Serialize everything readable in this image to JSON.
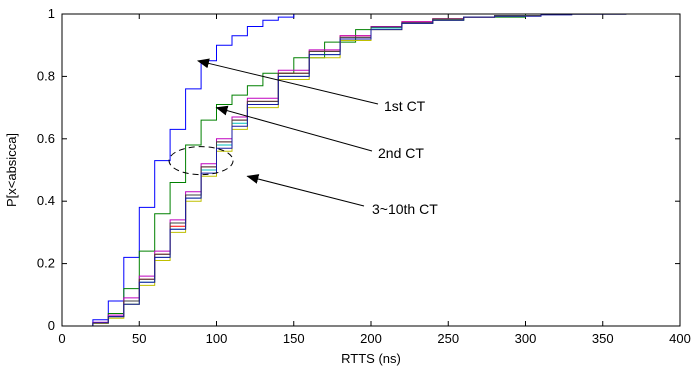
{
  "chart_data": {
    "type": "line",
    "title": "",
    "xlabel": "RTTS (ns)",
    "ylabel": "P[x<absicca]",
    "xlim": [
      0,
      400
    ],
    "ylim": [
      0,
      1
    ],
    "xticks": [
      0,
      50,
      100,
      150,
      200,
      250,
      300,
      350,
      400
    ],
    "yticks": [
      0,
      0.2,
      0.4,
      0.6,
      0.8,
      1
    ],
    "grid": false,
    "series": [
      {
        "color": "#0000ff",
        "x": [
          0,
          20,
          30,
          40,
          50,
          60,
          70,
          80,
          90,
          100,
          110,
          120,
          130,
          140,
          150,
          160
        ],
        "y": [
          0,
          0.02,
          0.08,
          0.22,
          0.38,
          0.53,
          0.63,
          0.76,
          0.85,
          0.9,
          0.93,
          0.96,
          0.98,
          0.99,
          1,
          1
        ]
      },
      {
        "color": "#008000",
        "x": [
          0,
          20,
          30,
          40,
          50,
          60,
          70,
          80,
          90,
          100,
          110,
          120,
          130,
          150,
          170,
          190,
          200,
          220,
          240,
          260,
          300,
          320
        ],
        "y": [
          0,
          0.01,
          0.04,
          0.12,
          0.24,
          0.36,
          0.46,
          0.58,
          0.66,
          0.71,
          0.74,
          0.77,
          0.81,
          0.86,
          0.91,
          0.95,
          0.96,
          0.97,
          0.98,
          0.99,
          1,
          1
        ]
      },
      {
        "color": "#ff0000",
        "x": [
          0,
          20,
          30,
          40,
          50,
          60,
          70,
          80,
          90,
          100,
          110,
          120,
          140,
          160,
          180,
          200,
          220,
          240,
          260,
          280,
          310,
          330
        ],
        "y": [
          0,
          0.01,
          0.03,
          0.08,
          0.15,
          0.23,
          0.32,
          0.42,
          0.51,
          0.59,
          0.66,
          0.72,
          0.81,
          0.88,
          0.93,
          0.96,
          0.975,
          0.985,
          0.99,
          0.995,
          1,
          1
        ]
      },
      {
        "color": "#00bfbf",
        "x": [
          0,
          20,
          30,
          40,
          50,
          60,
          70,
          80,
          90,
          100,
          110,
          120,
          140,
          160,
          180,
          200,
          220,
          240,
          260,
          280,
          310,
          330
        ],
        "y": [
          0,
          0.01,
          0.03,
          0.07,
          0.14,
          0.22,
          0.31,
          0.41,
          0.5,
          0.58,
          0.65,
          0.71,
          0.8,
          0.87,
          0.92,
          0.955,
          0.97,
          0.98,
          0.99,
          0.995,
          1,
          1
        ]
      },
      {
        "color": "#bf00bf",
        "x": [
          0,
          20,
          30,
          40,
          50,
          60,
          70,
          80,
          90,
          100,
          110,
          120,
          140,
          160,
          180,
          200,
          220,
          240,
          260,
          280,
          310,
          330
        ],
        "y": [
          0,
          0.012,
          0.035,
          0.09,
          0.16,
          0.24,
          0.34,
          0.43,
          0.52,
          0.6,
          0.67,
          0.73,
          0.82,
          0.885,
          0.93,
          0.96,
          0.975,
          0.985,
          0.99,
          0.995,
          1,
          1
        ]
      },
      {
        "color": "#bfbf00",
        "x": [
          0,
          20,
          30,
          40,
          50,
          60,
          70,
          80,
          90,
          100,
          110,
          120,
          140,
          160,
          180,
          200,
          220,
          240,
          260,
          280,
          310,
          330
        ],
        "y": [
          0,
          0.008,
          0.025,
          0.07,
          0.13,
          0.21,
          0.3,
          0.4,
          0.48,
          0.56,
          0.63,
          0.7,
          0.79,
          0.86,
          0.915,
          0.95,
          0.97,
          0.98,
          0.99,
          0.995,
          1,
          1
        ]
      },
      {
        "color": "#404040",
        "x": [
          0,
          20,
          30,
          40,
          50,
          60,
          70,
          80,
          90,
          100,
          110,
          120,
          140,
          160,
          180,
          200,
          220,
          240,
          260,
          280,
          310,
          330
        ],
        "y": [
          0,
          0.01,
          0.03,
          0.08,
          0.15,
          0.23,
          0.33,
          0.42,
          0.51,
          0.59,
          0.66,
          0.72,
          0.81,
          0.88,
          0.925,
          0.958,
          0.972,
          0.984,
          0.99,
          0.995,
          1,
          1
        ]
      },
      {
        "color": "#1a1aa0",
        "x": [
          0,
          20,
          30,
          40,
          50,
          60,
          70,
          80,
          90,
          100,
          110,
          120,
          140,
          160,
          180,
          200,
          220,
          240,
          260,
          280,
          310,
          330,
          365
        ],
        "y": [
          0,
          0.01,
          0.03,
          0.07,
          0.14,
          0.22,
          0.31,
          0.41,
          0.49,
          0.57,
          0.64,
          0.71,
          0.8,
          0.87,
          0.92,
          0.95,
          0.97,
          0.98,
          0.99,
          0.993,
          0.997,
          0.999,
          1
        ]
      }
    ],
    "annotations": [
      {
        "text": "1st CT",
        "points_to": [
          88,
          0.85
        ]
      },
      {
        "text": "2nd CT",
        "points_to": [
          100,
          0.7
        ]
      },
      {
        "text": "3~10th CT",
        "points_to": [
          120,
          0.48
        ],
        "ellipse_center": [
          90,
          0.53
        ]
      }
    ]
  }
}
